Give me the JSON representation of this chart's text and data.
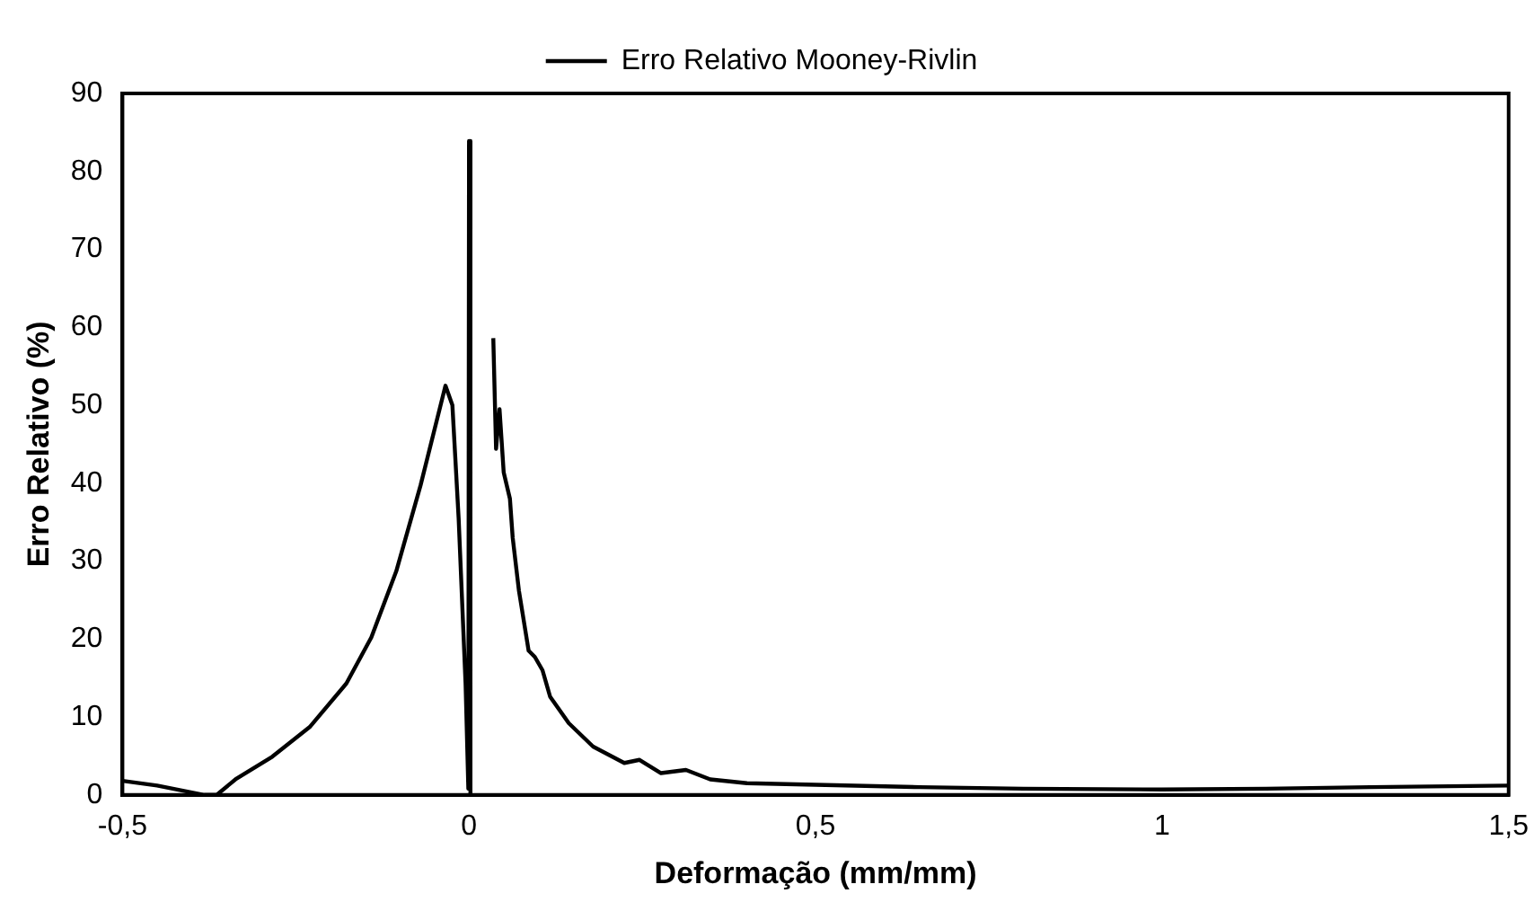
{
  "chart_data": {
    "type": "line",
    "xlabel": "Deformação (mm/mm)",
    "ylabel": "Erro Relativo (%)",
    "x": [
      -0.5,
      -0.45,
      -0.382,
      -0.364,
      -0.337,
      -0.284,
      -0.23,
      -0.177,
      -0.141,
      -0.105,
      -0.07,
      -0.034,
      -0.024,
      -0.015,
      -0.005,
      -0.001,
      0,
      0.002,
      0.02,
      0.035,
      0.039,
      0.044,
      0.05,
      0.059,
      0.063,
      0.072,
      0.086,
      0.095,
      0.106,
      0.117,
      0.144,
      0.179,
      0.224,
      0.246,
      0.277,
      0.313,
      0.348,
      0.401,
      0.5,
      0.65,
      0.8,
      1.0,
      1.15,
      1.3,
      1.5
    ],
    "series": [
      {
        "name": "Erro Relativo Mooney-Rivlin",
        "color": "#000000",
        "values": [
          1.8,
          1.2,
          0,
          0,
          2.0,
          4.9,
          8.7,
          14.3,
          20.2,
          28.7,
          39.7,
          52.5,
          50,
          35.5,
          14.3,
          0.8,
          83.9,
          0,
          null,
          58.6,
          44.4,
          49.5,
          41.4,
          38,
          33,
          26.2,
          18.5,
          17.7,
          16,
          12.6,
          9.2,
          6.2,
          4.1,
          4.5,
          2.8,
          3.2,
          2.0,
          1.5,
          1.3,
          1.0,
          0.8,
          0.7,
          0.8,
          1.0,
          1.2
        ]
      }
    ],
    "xlim": [
      -0.5,
      1.5
    ],
    "xticks": [
      {
        "value": -0.5,
        "label": "-0,5"
      },
      0,
      {
        "value": 0.5,
        "label": "0,5"
      },
      1,
      {
        "value": 1.5,
        "label": "1,5"
      }
    ],
    "ylim": [
      0,
      90
    ],
    "yticks": [
      0,
      10,
      20,
      30,
      40,
      50,
      60,
      70,
      80,
      90
    ],
    "grid": false,
    "legend": "top",
    "marker": "none",
    "line_style": "solid"
  }
}
